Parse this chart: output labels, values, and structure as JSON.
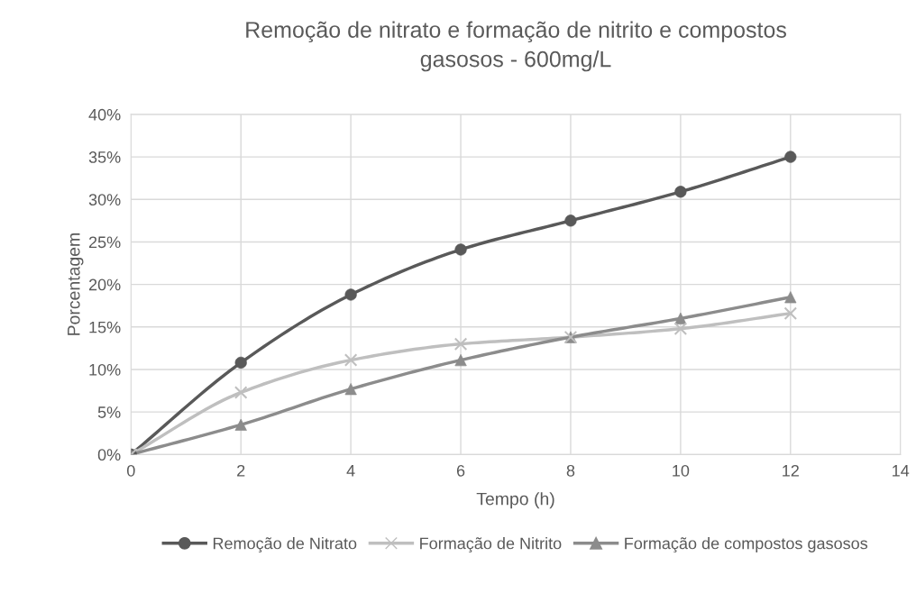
{
  "chart_data": {
    "type": "line",
    "title": "Remoção de nitrato e formação de nitrito e compostos\ngasosos - 600mg/L",
    "xlabel": "Tempo (h)",
    "ylabel": "Porcentagem",
    "x": [
      0,
      2,
      4,
      6,
      8,
      10,
      12
    ],
    "series": [
      {
        "name": "Remoção de Nitrato",
        "color": "#595959",
        "marker": "circle",
        "values": [
          0,
          10.8,
          18.8,
          24.1,
          27.5,
          30.9,
          35.0
        ]
      },
      {
        "name": "Formação de Nitrito",
        "color": "#bfbfbf",
        "marker": "cross",
        "values": [
          0,
          7.3,
          11.1,
          13.0,
          13.8,
          14.8,
          16.6
        ]
      },
      {
        "name": "Formação de compostos gasosos",
        "color": "#8c8c8c",
        "marker": "triangle",
        "values": [
          0,
          3.5,
          7.7,
          11.1,
          13.8,
          16.0,
          18.5
        ]
      }
    ],
    "xlim": [
      0,
      14
    ],
    "xticks": [
      0,
      2,
      4,
      6,
      8,
      10,
      12,
      14
    ],
    "ylim": [
      0,
      40
    ],
    "yticks": [
      {
        "value": 0,
        "label": "0%"
      },
      {
        "value": 5,
        "label": "5%"
      },
      {
        "value": 10,
        "label": "10%"
      },
      {
        "value": 15,
        "label": "15%"
      },
      {
        "value": 20,
        "label": "20%"
      },
      {
        "value": 25,
        "label": "25%"
      },
      {
        "value": 30,
        "label": "30%"
      },
      {
        "value": 35,
        "label": "35%"
      },
      {
        "value": 40,
        "label": "40%"
      }
    ],
    "grid": true,
    "legend": "bottom",
    "line_style": "solid"
  }
}
